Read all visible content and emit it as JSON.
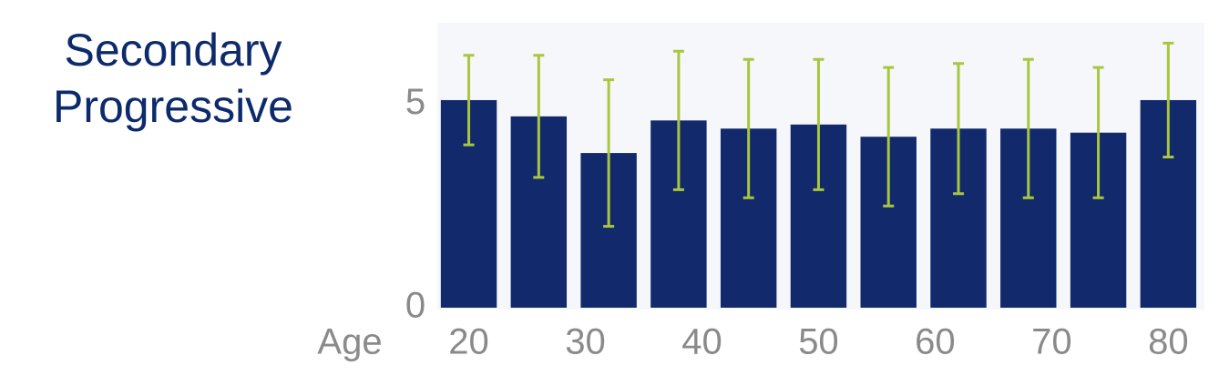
{
  "chart_data": {
    "type": "bar",
    "title": "Secondary Progressive",
    "x_label": "Age",
    "x": [
      20,
      26,
      32,
      38,
      44,
      50,
      56,
      62,
      68,
      74,
      80
    ],
    "values": [
      5.1,
      4.7,
      3.8,
      4.6,
      4.4,
      4.5,
      4.2,
      4.4,
      4.4,
      4.3,
      5.1
    ],
    "errors": [
      1.1,
      1.5,
      1.8,
      1.7,
      1.7,
      1.6,
      1.7,
      1.6,
      1.7,
      1.6,
      1.4
    ],
    "color": "#122a6b",
    "error_color": "#a8c640",
    "xlim": [
      17.3,
      83.1
    ],
    "xticks": [
      20,
      30,
      40,
      50,
      60,
      70,
      80
    ],
    "ylim": [
      0,
      7
    ],
    "yticks": [
      0,
      5
    ],
    "grid": false
  }
}
